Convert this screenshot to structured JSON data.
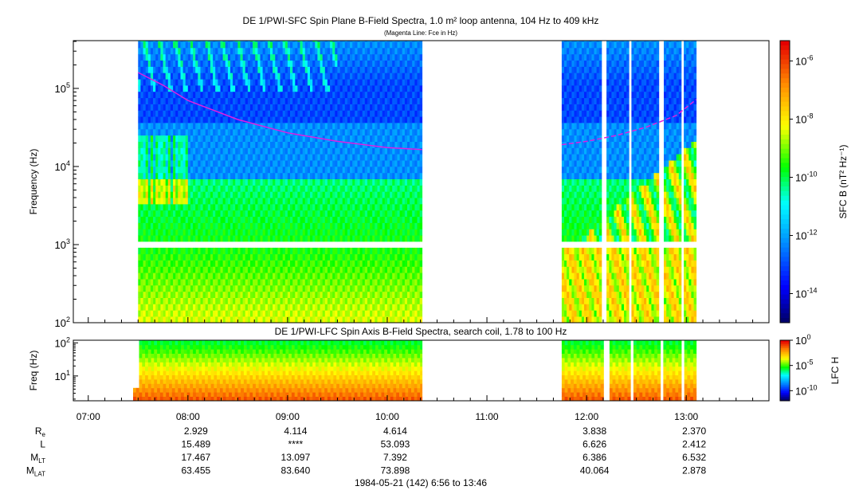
{
  "header": {
    "title": "DE 1/PWI-SFC  Spin Plane B-Field Spectra, 1.0 m² loop antenna, 104 Hz to 409 kHz",
    "subtitle": "(Magenta Line: Fce in Hz)"
  },
  "chart_data": [
    {
      "type": "heatmap",
      "name": "sfc-spectrogram",
      "title": "DE 1/PWI-SFC  Spin Plane B-Field Spectra, 1.0 m² loop antenna, 104 Hz to 409 kHz",
      "subtitle": "(Magenta Line: Fce in Hz)",
      "ylabel": "Frequency (Hz)",
      "yscale": "log",
      "ylim": [
        100,
        409000
      ],
      "yticks": [
        100,
        1000,
        10000,
        100000
      ],
      "ytick_labels": [
        {
          "base": "10",
          "exp": "2"
        },
        {
          "base": "10",
          "exp": "3"
        },
        {
          "base": "10",
          "exp": "4"
        },
        {
          "base": "10",
          "exp": "5"
        }
      ],
      "xlim_hours": [
        6.85,
        13.83
      ],
      "data_coverage_hours": [
        [
          7.5,
          10.35
        ],
        [
          11.75,
          13.1
        ]
      ],
      "fce_line": {
        "color": "#e020e0",
        "segment1": [
          {
            "t": 7.5,
            "f": 160000
          },
          {
            "t": 7.75,
            "f": 110000
          },
          {
            "t": 8.0,
            "f": 70000
          },
          {
            "t": 8.5,
            "f": 40000
          },
          {
            "t": 9.0,
            "f": 27000
          },
          {
            "t": 9.5,
            "f": 21000
          },
          {
            "t": 10.0,
            "f": 17500
          },
          {
            "t": 10.35,
            "f": 16500
          }
        ],
        "segment2": [
          {
            "t": 11.75,
            "f": 19000
          },
          {
            "t": 12.0,
            "f": 21000
          },
          {
            "t": 12.3,
            "f": 25000
          },
          {
            "t": 12.6,
            "f": 32000
          },
          {
            "t": 12.9,
            "f": 45000
          },
          {
            "t": 13.1,
            "f": 72000
          }
        ]
      },
      "colorbar": {
        "label": "SFC B (nT² Hz⁻¹)",
        "ticks": [
          {
            "base": "10",
            "exp": "-6"
          },
          {
            "base": "10",
            "exp": "-8"
          },
          {
            "base": "10",
            "exp": "-10"
          },
          {
            "base": "10",
            "exp": "-12"
          },
          {
            "base": "10",
            "exp": "-14"
          }
        ],
        "tick_values_log": [
          -6,
          -8,
          -10,
          -12,
          -14
        ],
        "range_log": [
          -15,
          -5.3
        ]
      }
    },
    {
      "type": "heatmap",
      "name": "lfc-spectrogram",
      "title": "DE 1/PWI-LFC  Spin Axis B-Field Spectra, search coil, 1.78 to 100 Hz",
      "ylabel": "Freq (Hz)",
      "yscale": "log",
      "ylim": [
        1.78,
        120
      ],
      "yticks": [
        10,
        100
      ],
      "ytick_labels": [
        {
          "base": "10",
          "exp": "1"
        },
        {
          "base": "10",
          "exp": "2"
        }
      ],
      "colorbar": {
        "label": "LFC H",
        "ticks": [
          {
            "base": "10",
            "exp": "0"
          },
          {
            "base": "10",
            "exp": "-5"
          },
          {
            "base": "10",
            "exp": "-10"
          }
        ],
        "tick_values_log": [
          0,
          -5,
          -10
        ],
        "range_log": [
          -12,
          0
        ]
      }
    }
  ],
  "xaxis": {
    "ticks": [
      {
        "t": 7,
        "label": "07:00"
      },
      {
        "t": 8,
        "label": "08:00"
      },
      {
        "t": 9,
        "label": "09:00"
      },
      {
        "t": 10,
        "label": "10:00"
      },
      {
        "t": 11,
        "label": "11:00"
      },
      {
        "t": 12,
        "label": "12:00"
      },
      {
        "t": 13,
        "label": "13:00"
      }
    ],
    "footer": "1984-05-21 (142) 6:56 to 13:46"
  },
  "ephemeris": {
    "rows": [
      {
        "name": "Re",
        "base": "R",
        "sub": "e",
        "values": [
          "2.929",
          "4.114",
          "4.614",
          "",
          "3.838",
          "2.370"
        ]
      },
      {
        "name": "L",
        "base": "L",
        "sub": "",
        "values": [
          "15.489",
          "****",
          "53.093",
          "",
          "6.626",
          "2.412"
        ]
      },
      {
        "name": "MLT",
        "base": "M",
        "sub": "LT",
        "values": [
          "17.467",
          "13.097",
          "7.392",
          "",
          "6.386",
          "6.532"
        ]
      },
      {
        "name": "MLAT",
        "base": "M",
        "sub": "LAT",
        "values": [
          "63.455",
          "83.640",
          "73.898",
          "",
          "40.064",
          "2.878"
        ]
      }
    ],
    "column_hours": [
      8,
      9,
      10,
      11,
      12,
      13
    ]
  }
}
